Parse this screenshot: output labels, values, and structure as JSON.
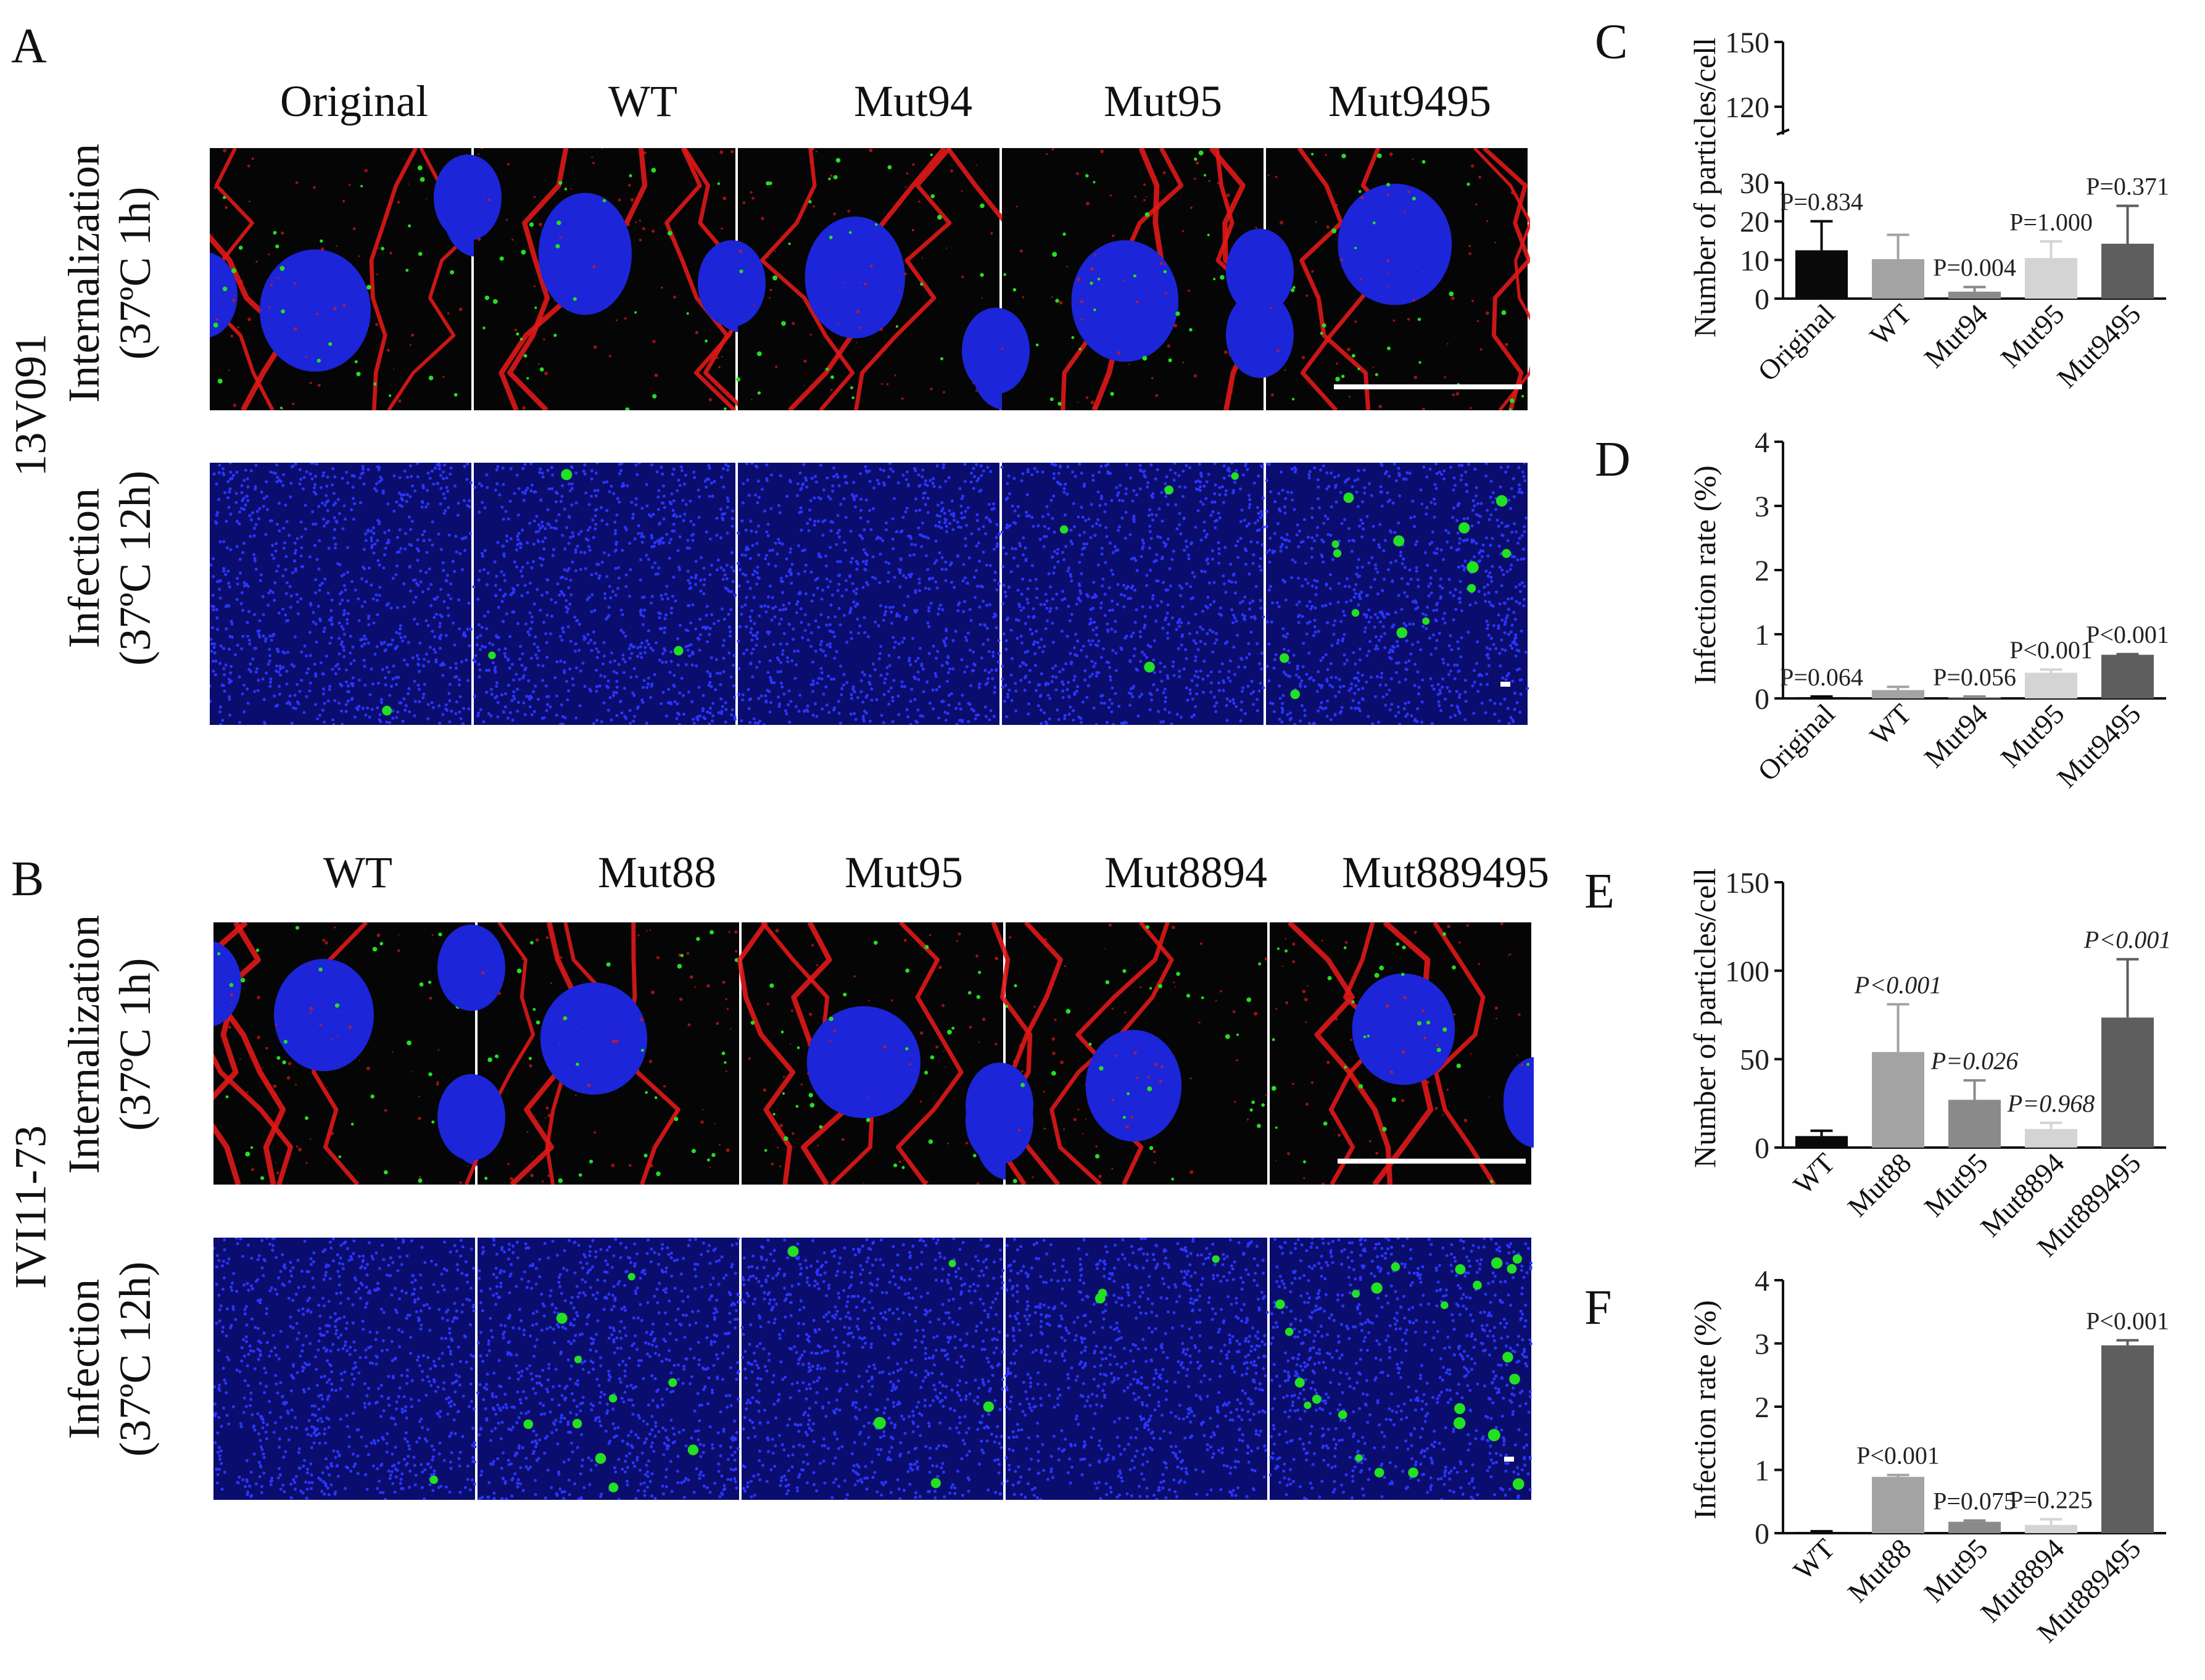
{
  "figure": {
    "panel_A": {
      "letter": "A",
      "strain": "13V091",
      "columns": [
        "Original",
        "WT",
        "Mut94",
        "Mut95",
        "Mut9495"
      ],
      "row_internalization": [
        "Internalization",
        "(37ºC 1h)"
      ],
      "row_infection": [
        "Infection",
        "(37ºC 12h)"
      ],
      "infection_green_cells": [
        1,
        3,
        0,
        4,
        14
      ]
    },
    "panel_B": {
      "letter": "B",
      "strain": "IVI11-73",
      "columns": [
        "WT",
        "Mut88",
        "Mut95",
        "Mut8894",
        "Mut889495"
      ],
      "row_internalization": [
        "Internalization",
        "(37ºC 1h)"
      ],
      "row_infection": [
        "Infection",
        "(37ºC 12h)"
      ],
      "infection_green_cells": [
        1,
        10,
        5,
        3,
        24
      ]
    },
    "colors": {
      "nucleus": "#1c25d8",
      "membrane": "#e01818",
      "particle": "#22e022",
      "cell_bg": "#050505",
      "bar_black": "#0a0a0a",
      "bar_gray1": "#a3a3a3",
      "bar_gray2": "#8a8a8a",
      "bar_gray3": "#d4d4d4",
      "bar_gray4": "#5e5e5e"
    }
  },
  "chart_data": [
    {
      "panel": "C",
      "type": "bar",
      "ylabel": "Number of particles/cell",
      "categories": [
        "Original",
        "WT",
        "Mut94",
        "Mut95",
        "Mut9495"
      ],
      "values": [
        12.5,
        10.2,
        1.8,
        10.5,
        14.2
      ],
      "errors": [
        7.5,
        6.3,
        1.2,
        4.3,
        9.8
      ],
      "p_labels": [
        "P=0.834",
        "",
        "P=0.004",
        "P=1.000",
        "P=0.371"
      ],
      "p_italic": false,
      "axis_break": true,
      "lower_ticks": [
        0,
        10,
        20,
        30
      ],
      "upper_ticks": [
        120,
        150
      ],
      "ylim_lower": [
        0,
        30
      ],
      "ylim_upper": [
        110,
        150
      ]
    },
    {
      "panel": "D",
      "type": "bar",
      "ylabel": "Infection rate (%)",
      "categories": [
        "Original",
        "WT",
        "Mut94",
        "Mut95",
        "Mut9495"
      ],
      "values": [
        0.02,
        0.13,
        0.02,
        0.4,
        0.68
      ],
      "errors": [
        0.01,
        0.05,
        0.01,
        0.05,
        0.01
      ],
      "p_labels": [
        "P=0.064",
        "",
        "P=0.056",
        "P<0.001",
        "P<0.001"
      ],
      "p_italic": false,
      "ticks": [
        0,
        1,
        2,
        3,
        4
      ],
      "ylim": [
        0,
        4
      ]
    },
    {
      "panel": "E",
      "type": "bar",
      "ylabel": "Number of particles/cell",
      "categories": [
        "WT",
        "Mut88",
        "Mut95",
        "Mut8894",
        "Mut889495"
      ],
      "values": [
        6.5,
        54,
        27,
        10.5,
        73.5
      ],
      "errors": [
        3,
        27,
        11,
        3.5,
        33
      ],
      "p_labels": [
        "",
        "P<0.001",
        "P=0.026",
        "P=0.968",
        "P<0.001"
      ],
      "p_italic": true,
      "ticks": [
        0,
        50,
        100,
        150
      ],
      "ylim": [
        0,
        150
      ]
    },
    {
      "panel": "F",
      "type": "bar",
      "ylabel": "Infection rate (%)",
      "categories": [
        "WT",
        "Mut88",
        "Mut95",
        "Mut8894",
        "Mut889495"
      ],
      "values": [
        0.02,
        0.89,
        0.18,
        0.13,
        2.97
      ],
      "errors": [
        0.01,
        0.03,
        0.02,
        0.09,
        0.08
      ],
      "p_labels": [
        "",
        "P<0.001",
        "P=0.075",
        "P=0.225",
        "P<0.001"
      ],
      "p_italic": false,
      "ticks": [
        0,
        1,
        2,
        3,
        4
      ],
      "ylim": [
        0,
        4
      ]
    }
  ]
}
